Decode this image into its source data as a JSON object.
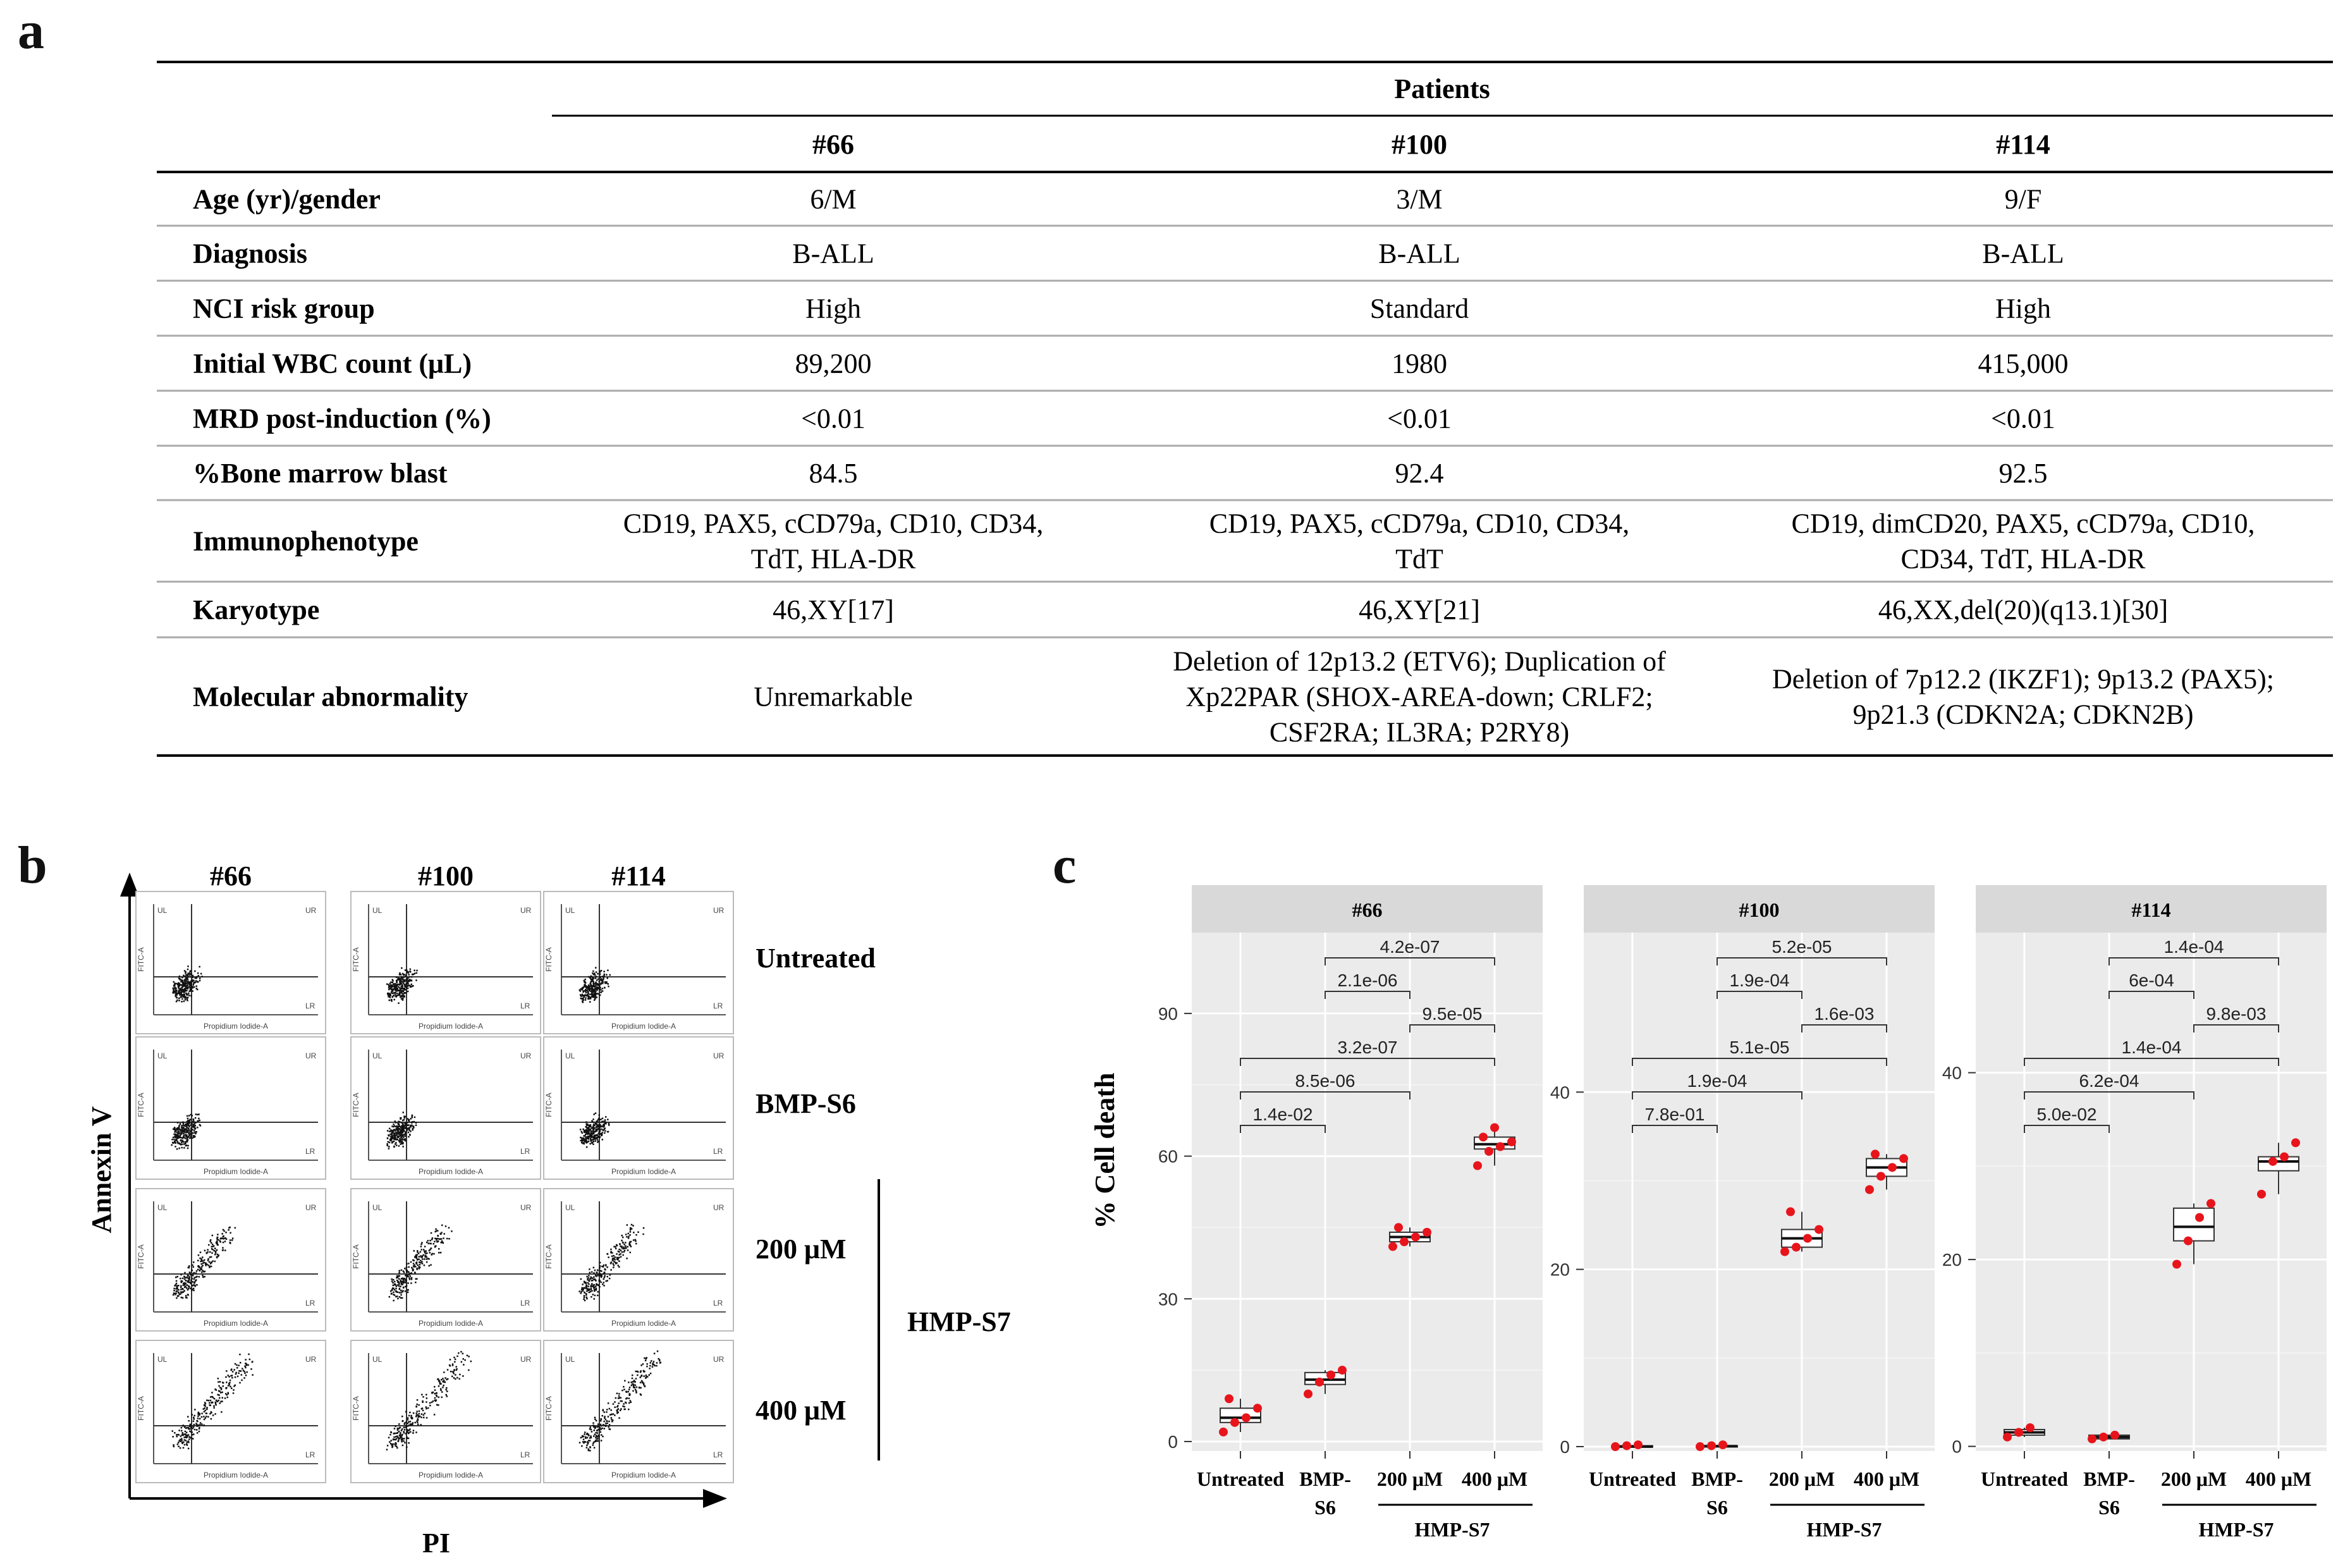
{
  "panels": {
    "a": "a",
    "b": "b",
    "c": "c"
  },
  "table": {
    "group_header": "Patients",
    "columns": [
      "#66",
      "#100",
      "#114"
    ],
    "rows": [
      {
        "label": "Age (yr)/gender",
        "cells": [
          [
            "6/M"
          ],
          [
            "3/M"
          ],
          [
            "9/F"
          ]
        ]
      },
      {
        "label": "Diagnosis",
        "cells": [
          [
            "B-ALL"
          ],
          [
            "B-ALL"
          ],
          [
            "B-ALL"
          ]
        ]
      },
      {
        "label": "NCI risk group",
        "cells": [
          [
            "High"
          ],
          [
            "Standard"
          ],
          [
            "High"
          ]
        ]
      },
      {
        "label": "Initial WBC count (μL)",
        "cells": [
          [
            "89,200"
          ],
          [
            "1980"
          ],
          [
            "415,000"
          ]
        ]
      },
      {
        "label": "MRD post-induction (%)",
        "cells": [
          [
            "<0.01"
          ],
          [
            "<0.01"
          ],
          [
            "<0.01"
          ]
        ]
      },
      {
        "label": "%Bone marrow blast",
        "cells": [
          [
            "84.5"
          ],
          [
            "92.4"
          ],
          [
            "92.5"
          ]
        ]
      },
      {
        "label": "Immunophenotype",
        "cells": [
          [
            "CD19, PAX5, cCD79a, CD10, CD34,",
            "TdT, HLA-DR"
          ],
          [
            "CD19, PAX5, cCD79a, CD10, CD34,",
            "TdT"
          ],
          [
            "CD19, dimCD20, PAX5, cCD79a, CD10,",
            "CD34, TdT, HLA-DR"
          ]
        ]
      },
      {
        "label": "Karyotype",
        "cells": [
          [
            "46,XY[17]"
          ],
          [
            "46,XY[21]"
          ],
          [
            "46,XX,del(20)(q13.1)[30]"
          ]
        ]
      },
      {
        "label": "Molecular abnormality",
        "cells": [
          [
            "Unremarkable"
          ],
          [
            "Deletion of 12p13.2 (ETV6); Duplication of",
            "Xp22PAR (SHOX-AREA-down; CRLF2;",
            "CSF2RA; IL3RA; P2RY8)"
          ],
          [
            "Deletion of 7p12.2 (IKZF1); 9p13.2 (PAX5);",
            "9p21.3 (CDKN2A; CDKN2B)"
          ]
        ]
      }
    ]
  },
  "flow": {
    "columns": [
      "#66",
      "#100",
      "#114"
    ],
    "rows": [
      "Untreated",
      "BMP-S6",
      "200 μM",
      "400 μM"
    ],
    "group_label": "HMP-S7",
    "y_axis": "Annexin V",
    "x_axis": "PI",
    "quadrant_labels": {
      "ul": "UL",
      "ur": "UR",
      "lr": "LR"
    },
    "inner_x_label": "Propidium Iodide-A",
    "inner_y_label": "FITC-A"
  },
  "chart_data": {
    "type": "box",
    "ylabel": "% Cell death",
    "categories": [
      "Untreated",
      "BMP-S6",
      "200 μM",
      "400 μM"
    ],
    "category_lines": [
      [
        "Untreated"
      ],
      [
        "BMP-",
        "S6"
      ],
      [
        "200 μM"
      ],
      [
        "400 μM"
      ]
    ],
    "group_label": "HMP-S7",
    "facets": [
      {
        "title": "#66",
        "ylim": [
          -2,
          107
        ],
        "yticks": [
          0,
          30,
          60,
          90
        ],
        "boxes": [
          {
            "q1": 4,
            "median": 5,
            "q3": 7,
            "min": 2,
            "max": 9,
            "points": [
              2,
              4,
              5,
              7,
              9
            ]
          },
          {
            "q1": 12,
            "median": 13,
            "q3": 14.5,
            "min": 10,
            "max": 15,
            "points": [
              10,
              12.5,
              14,
              15
            ]
          },
          {
            "q1": 42,
            "median": 43,
            "q3": 44,
            "min": 41,
            "max": 45,
            "points": [
              41,
              42,
              43,
              44,
              45
            ]
          },
          {
            "q1": 61.5,
            "median": 62.5,
            "q3": 64,
            "min": 58,
            "max": 66,
            "points": [
              58,
              61,
              62,
              63,
              64,
              66
            ]
          }
        ],
        "comparisons": [
          {
            "from": 1,
            "to": 3,
            "label": "4.2e-07",
            "level": 6
          },
          {
            "from": 1,
            "to": 2,
            "label": "2.1e-06",
            "level": 5
          },
          {
            "from": 2,
            "to": 3,
            "label": "9.5e-05",
            "level": 4
          },
          {
            "from": 0,
            "to": 3,
            "label": "3.2e-07",
            "level": 3
          },
          {
            "from": 0,
            "to": 2,
            "label": "8.5e-06",
            "level": 2
          },
          {
            "from": 0,
            "to": 1,
            "label": "1.4e-02",
            "level": 1
          }
        ]
      },
      {
        "title": "#100",
        "ylim": [
          -0.5,
          58
        ],
        "yticks": [
          0,
          20,
          40
        ],
        "boxes": [
          {
            "q1": 0,
            "median": 0,
            "q3": 0.1,
            "min": 0,
            "max": 0.2,
            "points": [
              0,
              0.1,
              0.2
            ]
          },
          {
            "q1": 0,
            "median": 0.05,
            "q3": 0.1,
            "min": 0,
            "max": 0.2,
            "points": [
              0,
              0.1,
              0.2
            ]
          },
          {
            "q1": 22.5,
            "median": 23.5,
            "q3": 24.5,
            "min": 22,
            "max": 26.5,
            "points": [
              22,
              22.5,
              23.5,
              24.5,
              26.5
            ]
          },
          {
            "q1": 30.5,
            "median": 31.5,
            "q3": 32.5,
            "min": 29,
            "max": 33,
            "points": [
              29,
              30.5,
              31.5,
              32.5,
              33
            ]
          }
        ],
        "comparisons": [
          {
            "from": 1,
            "to": 3,
            "label": "5.2e-05",
            "level": 6
          },
          {
            "from": 1,
            "to": 2,
            "label": "1.9e-04",
            "level": 5
          },
          {
            "from": 2,
            "to": 3,
            "label": "1.6e-03",
            "level": 4
          },
          {
            "from": 0,
            "to": 3,
            "label": "5.1e-05",
            "level": 3
          },
          {
            "from": 0,
            "to": 2,
            "label": "1.9e-04",
            "level": 2
          },
          {
            "from": 0,
            "to": 1,
            "label": "7.8e-01",
            "level": 1
          }
        ]
      },
      {
        "title": "#114",
        "ylim": [
          -0.5,
          55
        ],
        "yticks": [
          0,
          20,
          40
        ],
        "boxes": [
          {
            "q1": 1.2,
            "median": 1.5,
            "q3": 1.8,
            "min": 1,
            "max": 2,
            "points": [
              1,
              1.5,
              2
            ]
          },
          {
            "q1": 0.8,
            "median": 1,
            "q3": 1.2,
            "min": 0.8,
            "max": 1.2,
            "points": [
              0.8,
              1,
              1.2
            ]
          },
          {
            "q1": 22,
            "median": 23.5,
            "q3": 25.5,
            "min": 19.5,
            "max": 26,
            "points": [
              19.5,
              22,
              24.5,
              26
            ]
          },
          {
            "q1": 29.5,
            "median": 30.5,
            "q3": 31,
            "min": 27,
            "max": 32.5,
            "points": [
              27,
              30.5,
              31,
              32.5
            ]
          }
        ],
        "comparisons": [
          {
            "from": 1,
            "to": 3,
            "label": "1.4e-04",
            "level": 6
          },
          {
            "from": 1,
            "to": 2,
            "label": "6e-04",
            "level": 5
          },
          {
            "from": 2,
            "to": 3,
            "label": "9.8e-03",
            "level": 4
          },
          {
            "from": 0,
            "to": 3,
            "label": "1.4e-04",
            "level": 3
          },
          {
            "from": 0,
            "to": 2,
            "label": "6.2e-04",
            "level": 2
          },
          {
            "from": 0,
            "to": 1,
            "label": "5.0e-02",
            "level": 1
          }
        ]
      }
    ]
  }
}
